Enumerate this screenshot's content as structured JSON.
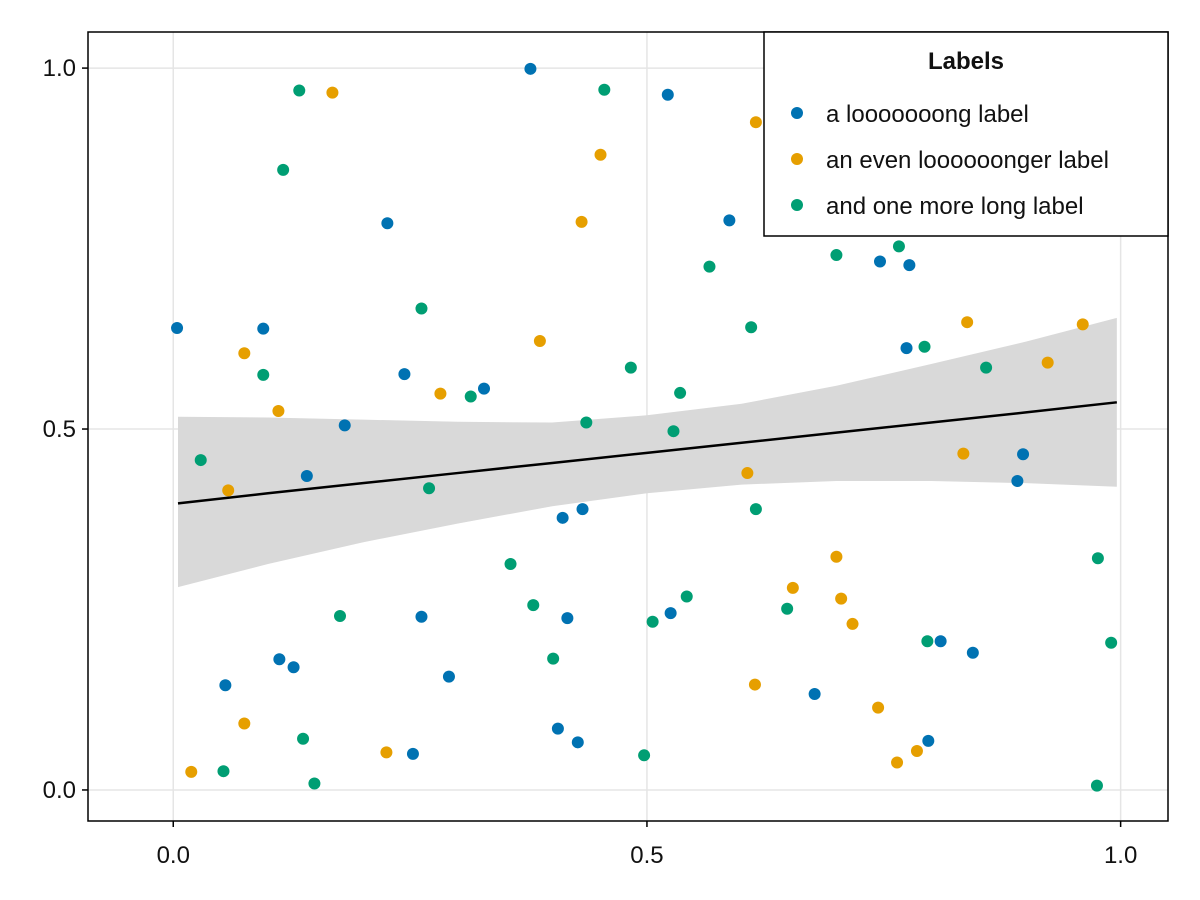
{
  "chart_data": {
    "type": "scatter",
    "xlim": [
      -0.09,
      1.05
    ],
    "ylim": [
      -0.043,
      1.05
    ],
    "xticks": [
      0.0,
      0.5,
      1.0
    ],
    "yticks": [
      0.0,
      0.5,
      1.0
    ],
    "xtick_labels": [
      "0.0",
      "0.5",
      "1.0"
    ],
    "ytick_labels": [
      "0.0",
      "0.5",
      "1.0"
    ],
    "grid": true,
    "legend": {
      "title": "Labels",
      "position": "top-right"
    },
    "series": [
      {
        "name": "a looooooong label",
        "color": "#0072b2",
        "points": [
          [
            0.004,
            0.64
          ],
          [
            0.095,
            0.639
          ],
          [
            0.244,
            0.576
          ],
          [
            0.328,
            0.556
          ],
          [
            0.181,
            0.505
          ],
          [
            0.141,
            0.435
          ],
          [
            0.226,
            0.785
          ],
          [
            0.377,
            0.999
          ],
          [
            0.522,
            0.963
          ],
          [
            0.587,
            0.789
          ],
          [
            0.746,
            0.732
          ],
          [
            0.777,
            0.727
          ],
          [
            0.774,
            0.612
          ],
          [
            0.897,
            0.465
          ],
          [
            0.891,
            0.428
          ],
          [
            0.411,
            0.377
          ],
          [
            0.432,
            0.389
          ],
          [
            0.262,
            0.24
          ],
          [
            0.416,
            0.238
          ],
          [
            0.525,
            0.245
          ],
          [
            0.112,
            0.181
          ],
          [
            0.127,
            0.17
          ],
          [
            0.055,
            0.145
          ],
          [
            0.291,
            0.157
          ],
          [
            0.677,
            0.133
          ],
          [
            0.81,
            0.206
          ],
          [
            0.844,
            0.19
          ],
          [
            0.406,
            0.085
          ],
          [
            0.427,
            0.066
          ],
          [
            0.253,
            0.05
          ],
          [
            0.797,
            0.068
          ]
        ]
      },
      {
        "name": "an even loooooonger label",
        "color": "#e69f00",
        "points": [
          [
            0.168,
            0.966
          ],
          [
            0.451,
            0.88
          ],
          [
            0.431,
            0.787
          ],
          [
            0.387,
            0.622
          ],
          [
            0.075,
            0.605
          ],
          [
            0.282,
            0.549
          ],
          [
            0.111,
            0.525
          ],
          [
            0.058,
            0.415
          ],
          [
            0.606,
            0.439
          ],
          [
            0.834,
            0.466
          ],
          [
            0.838,
            0.648
          ],
          [
            0.923,
            0.592
          ],
          [
            0.96,
            0.645
          ],
          [
            0.7,
            0.323
          ],
          [
            0.654,
            0.28
          ],
          [
            0.705,
            0.265
          ],
          [
            0.717,
            0.23
          ],
          [
            0.614,
            0.146
          ],
          [
            0.744,
            0.114
          ],
          [
            0.785,
            0.054
          ],
          [
            0.764,
            0.038
          ],
          [
            0.075,
            0.092
          ],
          [
            0.225,
            0.052
          ],
          [
            0.019,
            0.025
          ],
          [
            0.615,
            0.925
          ]
        ]
      },
      {
        "name": "and one more long label",
        "color": "#009e73",
        "points": [
          [
            0.133,
            0.969
          ],
          [
            0.455,
            0.97
          ],
          [
            0.116,
            0.859
          ],
          [
            0.262,
            0.667
          ],
          [
            0.095,
            0.575
          ],
          [
            0.029,
            0.457
          ],
          [
            0.314,
            0.545
          ],
          [
            0.27,
            0.418
          ],
          [
            0.483,
            0.585
          ],
          [
            0.436,
            0.509
          ],
          [
            0.528,
            0.497
          ],
          [
            0.535,
            0.55
          ],
          [
            0.566,
            0.725
          ],
          [
            0.61,
            0.641
          ],
          [
            0.7,
            0.741
          ],
          [
            0.766,
            0.753
          ],
          [
            0.793,
            0.614
          ],
          [
            0.858,
            0.585
          ],
          [
            0.615,
            0.389
          ],
          [
            0.356,
            0.313
          ],
          [
            0.38,
            0.256
          ],
          [
            0.176,
            0.241
          ],
          [
            0.542,
            0.268
          ],
          [
            0.506,
            0.233
          ],
          [
            0.648,
            0.251
          ],
          [
            0.401,
            0.182
          ],
          [
            0.796,
            0.206
          ],
          [
            0.99,
            0.204
          ],
          [
            0.976,
            0.321
          ],
          [
            0.137,
            0.071
          ],
          [
            0.053,
            0.026
          ],
          [
            0.149,
            0.009
          ],
          [
            0.497,
            0.048
          ],
          [
            0.975,
            0.006
          ]
        ]
      }
    ],
    "regression": {
      "color": "#000000",
      "band_color": "#d9d9d9",
      "x": [
        0.005,
        0.1,
        0.2,
        0.3,
        0.4,
        0.5,
        0.6,
        0.7,
        0.8,
        0.9,
        0.996
      ],
      "fit": [
        0.397,
        0.411,
        0.425,
        0.439,
        0.453,
        0.467,
        0.481,
        0.495,
        0.509,
        0.523,
        0.537
      ],
      "lower": [
        0.281,
        0.313,
        0.343,
        0.369,
        0.393,
        0.411,
        0.423,
        0.428,
        0.428,
        0.425,
        0.42
      ],
      "upper": [
        0.517,
        0.516,
        0.513,
        0.51,
        0.509,
        0.519,
        0.535,
        0.56,
        0.59,
        0.621,
        0.654
      ]
    }
  }
}
